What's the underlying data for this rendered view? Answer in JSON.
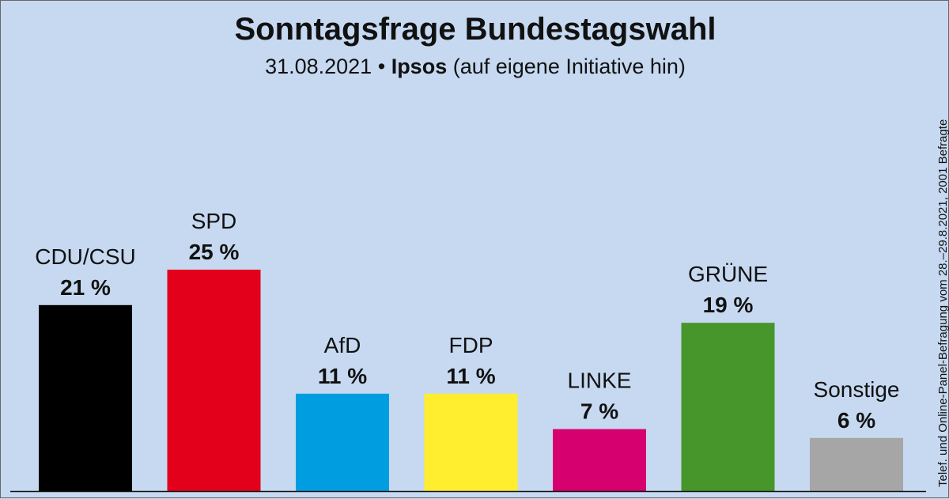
{
  "title": "Sonntagsfrage Bundestagswahl",
  "subtitle": {
    "date": "31.08.2021",
    "separator": "•",
    "institute": "Ipsos",
    "note": "(auf eigene Initiative hin)"
  },
  "side_note": "Telef. und Online-Panel-Befragung vom 28.–29.8.2021, 2001 Befragte",
  "chart_data": {
    "type": "bar",
    "title": "Sonntagsfrage Bundestagswahl",
    "xlabel": "",
    "ylabel": "",
    "ylim": [
      0,
      25
    ],
    "categories": [
      "CDU/CSU",
      "SPD",
      "AfD",
      "FDP",
      "LINKE",
      "GRÜNE",
      "Sonstige"
    ],
    "values": [
      21,
      25,
      11,
      11,
      7,
      19,
      6
    ],
    "value_labels": [
      "21 %",
      "25 %",
      "11 %",
      "11 %",
      "7 %",
      "19 %",
      "6 %"
    ],
    "colors": [
      "#000000",
      "#e3001b",
      "#009ee0",
      "#ffed2f",
      "#d6006f",
      "#46962b",
      "#a6a6a6"
    ]
  }
}
